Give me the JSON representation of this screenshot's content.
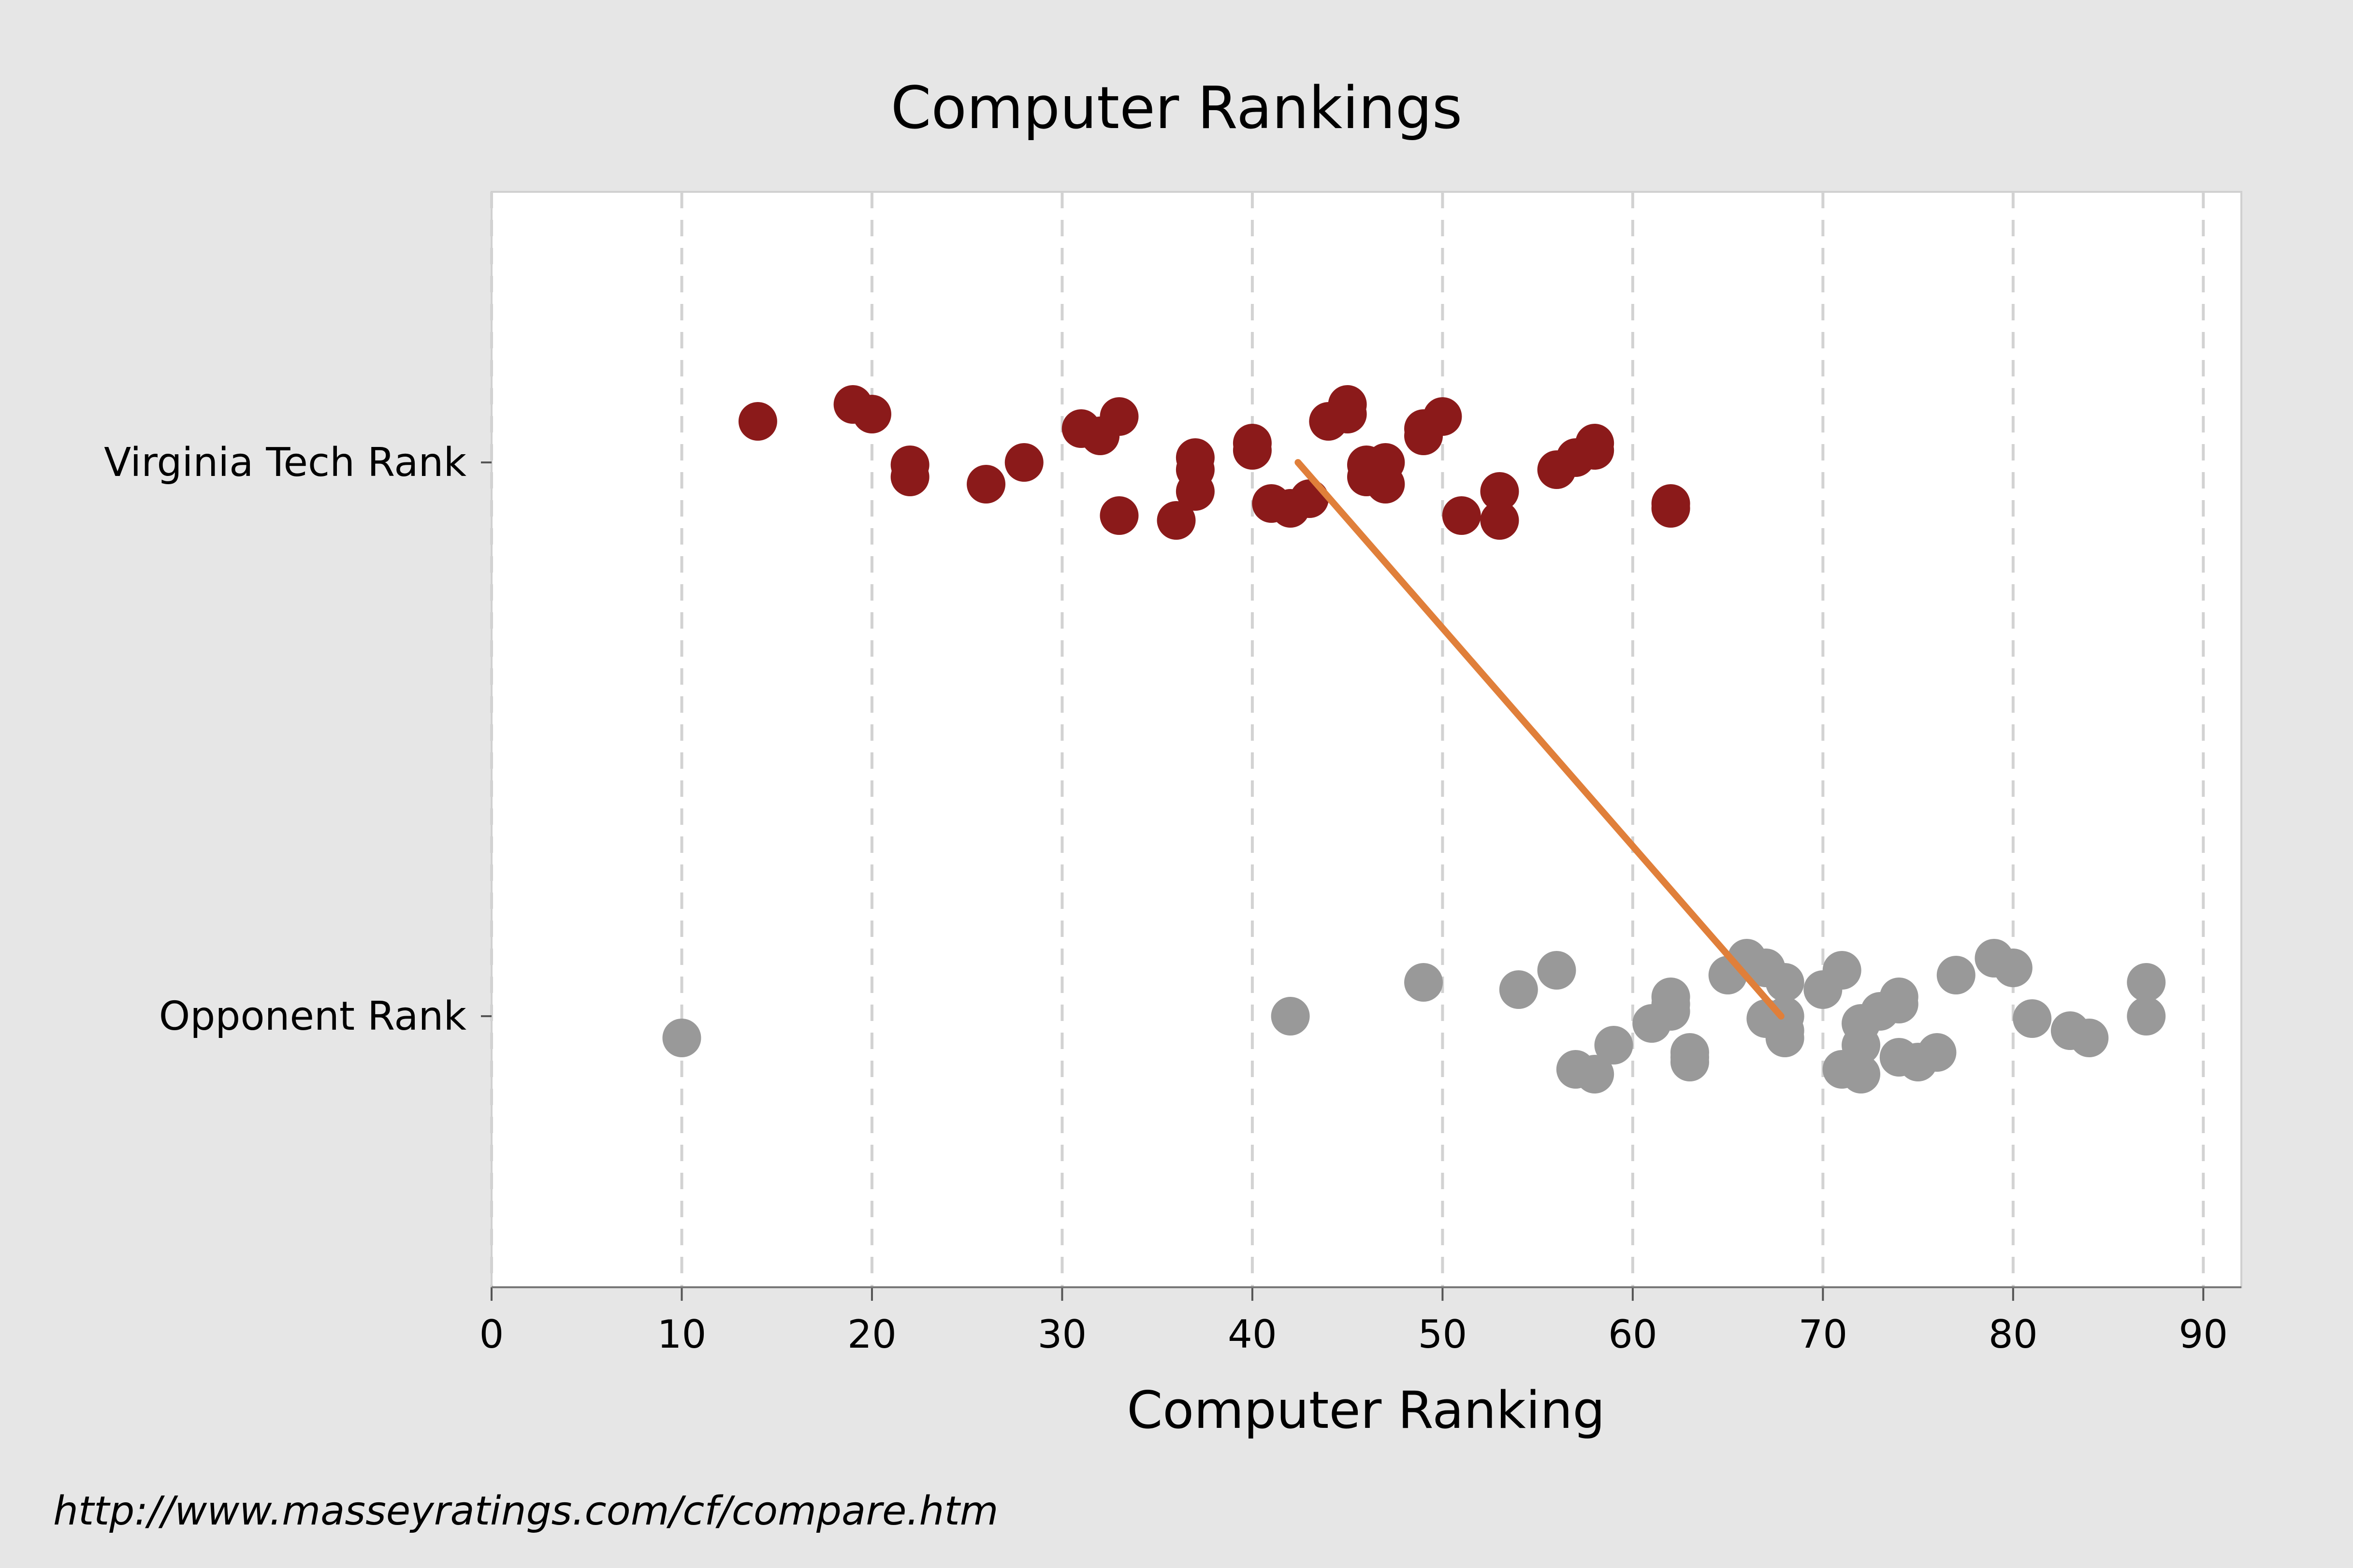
{
  "chart_data": {
    "type": "scatter",
    "title": "Computer Rankings",
    "xlabel": "Computer Ranking",
    "ylabel": "",
    "xlim": [
      0,
      92
    ],
    "xticks": [
      0,
      10,
      20,
      30,
      40,
      50,
      60,
      70,
      80,
      90
    ],
    "grid": "vertical dashed",
    "legend": "none",
    "categories": [
      "Virginia Tech Rank",
      "Opponent Rank"
    ],
    "source_note": "http://www.masseyratings.com/cf/compare.htm",
    "series": [
      {
        "category": "Virginia Tech Rank",
        "color": "#8b1a1a",
        "values": [
          14,
          19,
          20,
          22,
          22,
          26,
          28,
          31,
          32,
          33,
          33,
          36,
          37,
          37,
          37,
          40,
          40,
          41,
          42,
          43,
          44,
          45,
          45,
          46,
          46,
          47,
          47,
          49,
          49,
          50,
          51,
          53,
          53,
          56,
          57,
          58,
          58,
          62,
          62
        ]
      },
      {
        "category": "Opponent Rank",
        "color": "#999999",
        "values": [
          10,
          42,
          49,
          54,
          56,
          57,
          58,
          59,
          61,
          62,
          62,
          62,
          63,
          63,
          63,
          65,
          66,
          67,
          67,
          68,
          68,
          68,
          68,
          70,
          71,
          71,
          72,
          72,
          72,
          73,
          74,
          74,
          74,
          75,
          76,
          77,
          79,
          80,
          81,
          83,
          84,
          87,
          87
        ]
      }
    ],
    "connector": {
      "color": "#e07f3a",
      "from": {
        "category": "Virginia Tech Rank",
        "x": 42.4
      },
      "to": {
        "category": "Opponent Rank",
        "x": 67.8
      }
    }
  }
}
